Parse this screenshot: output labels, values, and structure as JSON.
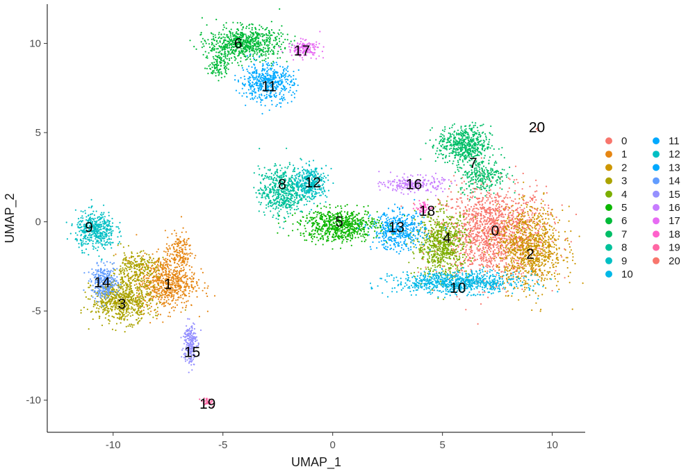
{
  "chart_data": {
    "type": "scatter",
    "title": "",
    "xlabel": "UMAP_1",
    "ylabel": "UMAP_2",
    "xlim": [
      -13.0,
      11.5
    ],
    "ylim": [
      -11.8,
      12.2
    ],
    "xticks": [
      -10,
      -5,
      0,
      5,
      10
    ],
    "yticks": [
      -10,
      -5,
      0,
      5,
      10
    ],
    "xtick_labels": [
      "-10",
      "-5",
      "0",
      "5",
      "10"
    ],
    "ytick_labels": [
      "-10",
      "-5",
      "0",
      "5",
      "10"
    ],
    "grid": false,
    "legend_position": "right",
    "legend_columns": 2,
    "clusters": [
      {
        "name": "0",
        "color": "#F8766D",
        "label_x": 7.4,
        "label_y": -0.5,
        "blobs": [
          {
            "cx": 7.3,
            "cy": -0.6,
            "sx": 1.6,
            "sy": 1.7,
            "n": 1500
          }
        ]
      },
      {
        "name": "1",
        "color": "#E68613",
        "label_x": -7.5,
        "label_y": -3.5,
        "blobs": [
          {
            "cx": -7.6,
            "cy": -3.4,
            "sx": 0.9,
            "sy": 1.0,
            "n": 700
          },
          {
            "cx": -7.0,
            "cy": -1.6,
            "sx": 0.4,
            "sy": 0.7,
            "n": 150
          }
        ]
      },
      {
        "name": "2",
        "color": "#CD9600",
        "label_x": 9.0,
        "label_y": -1.8,
        "blobs": [
          {
            "cx": 9.0,
            "cy": -1.5,
            "sx": 1.0,
            "sy": 1.5,
            "n": 900
          }
        ]
      },
      {
        "name": "3",
        "color": "#ABA300",
        "label_x": -9.6,
        "label_y": -4.6,
        "blobs": [
          {
            "cx": -9.6,
            "cy": -4.4,
            "sx": 0.9,
            "sy": 0.8,
            "n": 700
          },
          {
            "cx": -9.0,
            "cy": -2.6,
            "sx": 0.7,
            "sy": 0.6,
            "n": 250
          }
        ]
      },
      {
        "name": "4",
        "color": "#7CAE00",
        "label_x": 5.2,
        "label_y": -0.9,
        "blobs": [
          {
            "cx": 5.0,
            "cy": -1.3,
            "sx": 0.8,
            "sy": 1.2,
            "n": 700
          }
        ]
      },
      {
        "name": "5",
        "color": "#0CB702",
        "label_x": 0.3,
        "label_y": 0.0,
        "blobs": [
          {
            "cx": 0.3,
            "cy": -0.2,
            "sx": 1.2,
            "sy": 0.6,
            "n": 700
          }
        ]
      },
      {
        "name": "6",
        "color": "#00BA38",
        "label_x": -4.3,
        "label_y": 10.0,
        "blobs": [
          {
            "cx": -4.0,
            "cy": 10.0,
            "sx": 1.1,
            "sy": 0.6,
            "n": 700
          },
          {
            "cx": -5.2,
            "cy": 8.9,
            "sx": 0.3,
            "sy": 0.6,
            "n": 120
          }
        ]
      },
      {
        "name": "7",
        "color": "#00BE67",
        "label_x": 6.4,
        "label_y": 3.3,
        "blobs": [
          {
            "cx": 6.0,
            "cy": 4.3,
            "sx": 0.8,
            "sy": 0.7,
            "n": 550
          },
          {
            "cx": 6.8,
            "cy": 2.6,
            "sx": 0.7,
            "sy": 0.6,
            "n": 250
          }
        ]
      },
      {
        "name": "8",
        "color": "#00C19A",
        "label_x": -2.3,
        "label_y": 2.1,
        "blobs": [
          {
            "cx": -2.3,
            "cy": 1.7,
            "sx": 0.7,
            "sy": 0.9,
            "n": 550
          }
        ]
      },
      {
        "name": "9",
        "color": "#00BFC4",
        "label_x": -11.1,
        "label_y": -0.3,
        "blobs": [
          {
            "cx": -10.8,
            "cy": -0.5,
            "sx": 0.6,
            "sy": 0.7,
            "n": 450
          }
        ]
      },
      {
        "name": "10",
        "color": "#00B8E7",
        "label_x": 5.7,
        "label_y": -3.7,
        "blobs": [
          {
            "cx": 5.7,
            "cy": -3.4,
            "sx": 1.9,
            "sy": 0.4,
            "n": 800
          }
        ]
      },
      {
        "name": "11",
        "color": "#00A9FF",
        "label_x": -2.9,
        "label_y": 7.6,
        "blobs": [
          {
            "cx": -3.0,
            "cy": 7.8,
            "sx": 0.8,
            "sy": 0.7,
            "n": 500
          }
        ]
      },
      {
        "name": "12",
        "color": "#00BFC4",
        "label_x": -0.9,
        "label_y": 2.2,
        "blobs": [
          {
            "cx": -1.0,
            "cy": 2.2,
            "sx": 0.5,
            "sy": 0.6,
            "n": 350
          }
        ]
      },
      {
        "name": "13",
        "color": "#00A9FF",
        "label_x": 2.9,
        "label_y": -0.3,
        "blobs": [
          {
            "cx": 3.0,
            "cy": -0.5,
            "sx": 0.8,
            "sy": 0.7,
            "n": 450
          }
        ]
      },
      {
        "name": "14",
        "color": "#619CFF",
        "label_x": -10.5,
        "label_y": -3.4,
        "blobs": [
          {
            "cx": -10.4,
            "cy": -3.4,
            "sx": 0.4,
            "sy": 0.6,
            "n": 300
          }
        ]
      },
      {
        "name": "15",
        "color": "#9590FF",
        "label_x": -6.4,
        "label_y": -7.3,
        "blobs": [
          {
            "cx": -6.5,
            "cy": -6.8,
            "sx": 0.2,
            "sy": 0.8,
            "n": 220
          }
        ]
      },
      {
        "name": "16",
        "color": "#C77CFF",
        "label_x": 3.7,
        "label_y": 2.1,
        "blobs": [
          {
            "cx": 3.7,
            "cy": 2.1,
            "sx": 0.9,
            "sy": 0.3,
            "n": 220
          }
        ]
      },
      {
        "name": "17",
        "color": "#E76BF3",
        "label_x": -1.4,
        "label_y": 9.6,
        "blobs": [
          {
            "cx": -1.3,
            "cy": 9.7,
            "sx": 0.5,
            "sy": 0.3,
            "n": 160
          }
        ]
      },
      {
        "name": "18",
        "color": "#FF61CC",
        "label_x": 4.3,
        "label_y": 0.6,
        "blobs": [
          {
            "cx": 4.1,
            "cy": 0.8,
            "sx": 0.2,
            "sy": 0.2,
            "n": 60
          }
        ]
      },
      {
        "name": "19",
        "color": "#FF67A4",
        "label_x": -5.7,
        "label_y": -10.2,
        "blobs": [
          {
            "cx": -5.7,
            "cy": -10.1,
            "sx": 0.2,
            "sy": 0.15,
            "n": 40
          }
        ]
      },
      {
        "name": "20",
        "color": "#F8766D",
        "label_x": 9.3,
        "label_y": 5.3,
        "blobs": [
          {
            "cx": 9.3,
            "cy": 5.2,
            "sx": 0.05,
            "sy": 0.05,
            "n": 5
          }
        ]
      }
    ]
  }
}
